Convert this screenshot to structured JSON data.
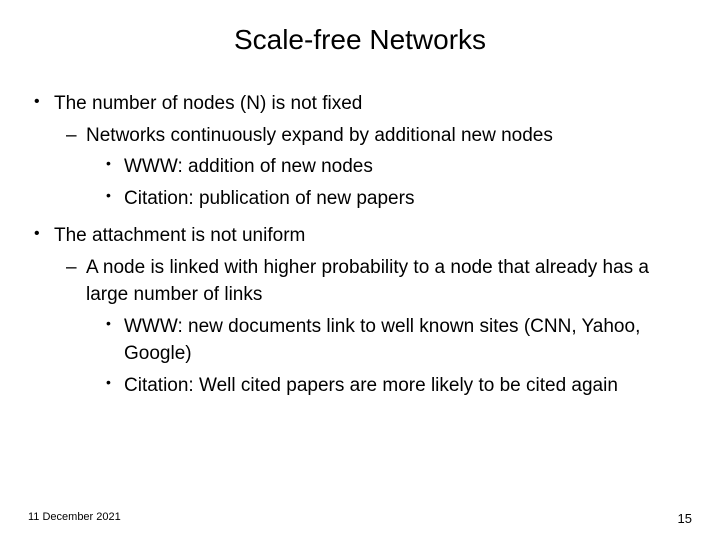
{
  "title": "Scale-free Networks",
  "bullets": {
    "b1": "The number of nodes (N) is not fixed",
    "b1_1": "Networks continuously expand by additional new nodes",
    "b1_1_1": "WWW: addition of new nodes",
    "b1_1_2": "Citation: publication of new papers",
    "b2": "The attachment is not uniform",
    "b2_1": "A node is linked with higher probability to a node that already has a large number of links",
    "b2_1_1": "WWW: new documents link to well known sites (CNN, Yahoo, Google)",
    "b2_1_2": "Citation: Well cited papers are more likely to be cited again"
  },
  "footer": {
    "date": "11 December 2021",
    "page": "15"
  },
  "style": {
    "background_color": "#ffffff",
    "text_color": "#000000",
    "title_fontsize": 28,
    "body_fontsize": 19,
    "footer_fontsize": 11
  }
}
